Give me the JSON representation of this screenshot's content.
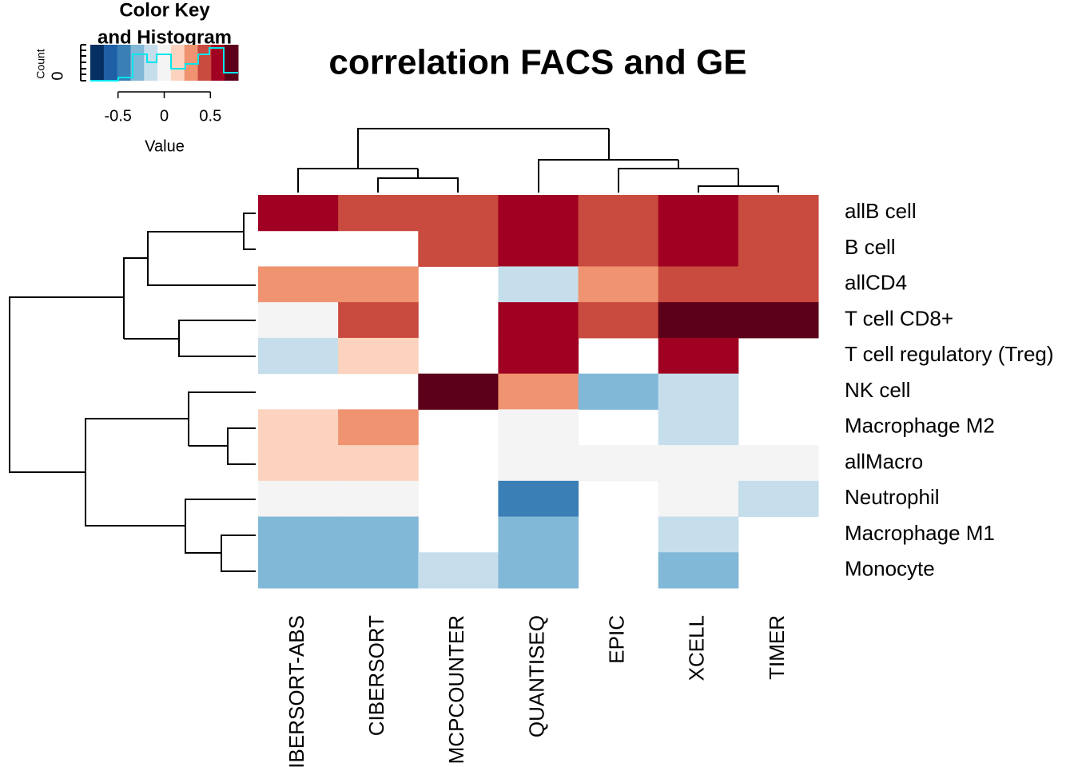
{
  "chart_data": {
    "type": "heatmap",
    "title": "correlation FACS and GE",
    "key_title": [
      "Color Key",
      "and Histogram"
    ],
    "key_xlabel": "Value",
    "key_ylabel": "Count",
    "key_yticks": [
      0
    ],
    "zlim": [
      -0.8,
      0.8
    ],
    "key_ticks": [
      -0.5,
      0,
      0.5
    ],
    "colors": [
      "#053061",
      "#1F5FA6",
      "#3A7FB6",
      "#82B8D7",
      "#C6DEEC",
      "#F4F4F4",
      "#FBD3BE",
      "#EF9370",
      "#C94A3E",
      "#A00021",
      "#5C001A"
    ],
    "columns": [
      "CIBERSORT-ABS",
      "CIBERSORT",
      "MCPCOUNTER",
      "QUANTISEQ",
      "EPIC",
      "XCELL",
      "TIMER"
    ],
    "rows": [
      "allB cell",
      "B cell",
      "allCD4",
      "T cell CD8+",
      "T cell regulatory (Treg)",
      "NK cell",
      "Macrophage M2",
      "allMacro",
      "Neutrophil",
      "Macrophage M1",
      "Monocyte"
    ],
    "values": [
      [
        0.6,
        0.45,
        0.45,
        0.6,
        0.45,
        0.6,
        0.45
      ],
      [
        null,
        null,
        0.45,
        0.6,
        0.45,
        0.6,
        0.45
      ],
      [
        0.3,
        0.3,
        null,
        -0.15,
        0.3,
        0.45,
        0.45
      ],
      [
        0,
        0.45,
        null,
        0.6,
        0.45,
        0.75,
        0.75
      ],
      [
        -0.15,
        0.15,
        null,
        0.6,
        null,
        0.6,
        null
      ],
      [
        null,
        null,
        0.75,
        0.3,
        -0.3,
        -0.15,
        null
      ],
      [
        0.15,
        0.3,
        null,
        0,
        null,
        -0.15,
        null
      ],
      [
        0.15,
        0.15,
        null,
        0,
        0,
        0,
        0
      ],
      [
        0,
        0,
        null,
        -0.45,
        null,
        0,
        -0.15
      ],
      [
        -0.3,
        -0.3,
        null,
        -0.3,
        null,
        -0.15,
        null
      ],
      [
        -0.3,
        -0.3,
        -0.15,
        -0.3,
        null,
        -0.3,
        null
      ]
    ]
  }
}
